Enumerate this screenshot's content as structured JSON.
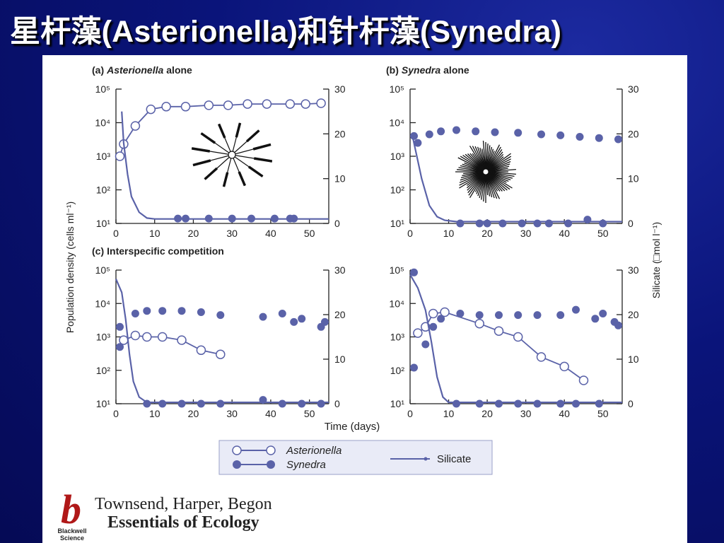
{
  "slide_title": "星杆藻(Asterionella)和针杆藻(Synedra)",
  "colors": {
    "series": "#5a62a8",
    "axis": "#222222",
    "background": "#0a147a"
  },
  "chart_data": [
    {
      "type": "scatter",
      "panel_label": "(a)",
      "title_species": "Asterionella",
      "title_rest": "alone",
      "x": {
        "ticks": [
          0,
          10,
          20,
          30,
          40,
          50
        ],
        "range": [
          0,
          55
        ]
      },
      "y_left": {
        "ticks": [
          "10⁵",
          "10⁴",
          "10³",
          "10²",
          "10¹"
        ],
        "log_range": [
          1,
          5
        ]
      },
      "y_right": {
        "ticks": [
          30,
          20,
          10,
          0
        ],
        "range": [
          0,
          30
        ]
      },
      "series": [
        {
          "name": "Asterionella",
          "marker": "open-circle",
          "points": [
            [
              1,
              1000
            ],
            [
              2,
              2300
            ],
            [
              5,
              8000
            ],
            [
              9,
              25000
            ],
            [
              13,
              30000
            ],
            [
              18,
              30000
            ],
            [
              24,
              33000
            ],
            [
              29,
              33000
            ],
            [
              34,
              36000
            ],
            [
              39,
              36000
            ],
            [
              45,
              36000
            ],
            [
              49,
              36000
            ],
            [
              53,
              38000
            ]
          ]
        },
        {
          "name": "Synedra",
          "marker": "filled-circle",
          "points": [
            [
              16,
              14
            ],
            [
              18,
              14
            ],
            [
              24,
              14
            ],
            [
              30,
              14
            ],
            [
              35,
              14
            ],
            [
              41,
              14
            ],
            [
              45,
              14
            ],
            [
              46,
              14
            ]
          ]
        },
        {
          "name": "Silicate",
          "marker": "line",
          "axis": "right",
          "curve": [
            [
              1.5,
              25
            ],
            [
              2,
              18
            ],
            [
              3,
              11
            ],
            [
              4,
              6
            ],
            [
              6,
              2.5
            ],
            [
              8,
              1.2
            ],
            [
              10,
              1.0
            ],
            [
              55,
              1.0
            ]
          ]
        }
      ]
    },
    {
      "type": "scatter",
      "panel_label": "(b)",
      "title_species": "Synedra",
      "title_rest": "alone",
      "x": {
        "ticks": [
          0,
          10,
          20,
          30,
          40,
          50
        ],
        "range": [
          0,
          55
        ]
      },
      "y_left": {
        "ticks": [
          "10⁵",
          "10⁴",
          "10³",
          "10²",
          "10¹"
        ],
        "log_range": [
          1,
          5
        ]
      },
      "y_right": {
        "ticks": [
          30,
          20,
          10,
          0
        ],
        "range": [
          0,
          30
        ]
      },
      "series": [
        {
          "name": "Synedra",
          "marker": "filled-circle",
          "points": [
            [
              1,
              4000
            ],
            [
              2,
              2500
            ],
            [
              5,
              4500
            ],
            [
              8,
              5500
            ],
            [
              12,
              6000
            ],
            [
              17,
              5500
            ],
            [
              22,
              5200
            ],
            [
              28,
              5000
            ],
            [
              34,
              4500
            ],
            [
              39,
              4200
            ],
            [
              44,
              3800
            ],
            [
              49,
              3500
            ],
            [
              54,
              3200
            ]
          ]
        },
        {
          "name": "Synedra",
          "marker": "filled-circle",
          "points": [
            [
              13,
              10
            ],
            [
              18,
              10
            ],
            [
              20,
              10
            ],
            [
              24,
              10
            ],
            [
              29,
              10
            ],
            [
              33,
              10
            ],
            [
              36,
              10
            ],
            [
              41,
              10
            ],
            [
              46,
              13
            ],
            [
              50,
              10
            ]
          ]
        },
        {
          "name": "Silicate",
          "marker": "line",
          "axis": "right",
          "curve": [
            [
              0.5,
              20
            ],
            [
              1.5,
              16
            ],
            [
              3,
              10
            ],
            [
              5,
              4
            ],
            [
              7,
              1.5
            ],
            [
              9,
              0.7
            ],
            [
              12,
              0.4
            ],
            [
              55,
              0.4
            ]
          ]
        }
      ]
    },
    {
      "type": "scatter",
      "panel_label": "(c)",
      "title_species": "",
      "title_rest": "Interspecific competition",
      "x": {
        "ticks": [
          0,
          10,
          20,
          30,
          40,
          50
        ],
        "range": [
          0,
          55
        ]
      },
      "y_left": {
        "ticks": [
          "10⁵",
          "10⁴",
          "10³",
          "10²",
          "10¹"
        ],
        "log_range": [
          1,
          5
        ]
      },
      "y_right": {
        "ticks": [
          30,
          20,
          10,
          0
        ],
        "range": [
          0,
          30
        ]
      },
      "series": [
        {
          "name": "Asterionella",
          "marker": "open-circle",
          "points": [
            [
              2,
              800
            ],
            [
              5,
              1100
            ],
            [
              8,
              1000
            ],
            [
              12,
              1000
            ],
            [
              17,
              800
            ],
            [
              22,
              400
            ],
            [
              27,
              300
            ]
          ]
        },
        {
          "name": "Synedra",
          "marker": "filled-circle",
          "points": [
            [
              1,
              500
            ],
            [
              1,
              2000
            ],
            [
              5,
              5000
            ],
            [
              8,
              6000
            ],
            [
              12,
              6000
            ],
            [
              17,
              6000
            ],
            [
              22,
              5500
            ],
            [
              27,
              4500
            ],
            [
              38,
              4000
            ],
            [
              43,
              5000
            ],
            [
              46,
              2800
            ],
            [
              48,
              3500
            ],
            [
              53,
              2000
            ],
            [
              54,
              2800
            ]
          ]
        },
        {
          "name": "Synedra",
          "marker": "filled-circle",
          "points": [
            [
              8,
              10
            ],
            [
              12,
              10
            ],
            [
              17,
              10
            ],
            [
              22,
              10
            ],
            [
              27,
              10
            ],
            [
              38,
              13
            ],
            [
              43,
              10
            ],
            [
              48,
              10
            ],
            [
              53,
              10
            ]
          ]
        },
        {
          "name": "Silicate",
          "marker": "line",
          "axis": "right",
          "curve": [
            [
              0,
              28
            ],
            [
              1.5,
              25
            ],
            [
              2.5,
              19
            ],
            [
              3.5,
              11
            ],
            [
              4.5,
              5
            ],
            [
              6,
              1.5
            ],
            [
              8,
              0.3
            ],
            [
              55,
              0.3
            ]
          ]
        }
      ]
    },
    {
      "type": "scatter",
      "panel_label": "",
      "title_species": "",
      "title_rest": "",
      "x": {
        "ticks": [
          0,
          10,
          20,
          30,
          40,
          50
        ],
        "range": [
          0,
          55
        ]
      },
      "y_left": {
        "ticks": [
          "10⁵",
          "10⁴",
          "10³",
          "10²",
          "10¹"
        ],
        "log_range": [
          1,
          5
        ]
      },
      "y_right": {
        "ticks": [
          30,
          20,
          10,
          0
        ],
        "range": [
          0,
          30
        ]
      },
      "series": [
        {
          "name": "Asterionella",
          "marker": "open-circle",
          "points": [
            [
              2,
              1300
            ],
            [
              4,
              2000
            ],
            [
              6,
              5000
            ],
            [
              9,
              5500
            ],
            [
              18,
              2500
            ],
            [
              23,
              1500
            ],
            [
              28,
              1000
            ],
            [
              34,
              250
            ],
            [
              40,
              130
            ],
            [
              45,
              50
            ]
          ]
        },
        {
          "name": "Synedra",
          "marker": "filled-circle",
          "points": [
            [
              1,
              120
            ],
            [
              1,
              85000
            ],
            [
              4,
              600
            ],
            [
              6,
              2000
            ],
            [
              8,
              3500
            ],
            [
              13,
              5000
            ],
            [
              18,
              4500
            ],
            [
              23,
              4500
            ],
            [
              28,
              4500
            ],
            [
              33,
              4500
            ],
            [
              39,
              4500
            ],
            [
              43,
              6500
            ],
            [
              48,
              3500
            ],
            [
              50,
              5000
            ],
            [
              53,
              2800
            ],
            [
              54,
              2200
            ]
          ]
        },
        {
          "name": "Synedra",
          "marker": "filled-circle",
          "points": [
            [
              12,
              10
            ],
            [
              18,
              10
            ],
            [
              23,
              10
            ],
            [
              28,
              10
            ],
            [
              33,
              10
            ],
            [
              39,
              10
            ],
            [
              43,
              10
            ],
            [
              49,
              10
            ]
          ]
        },
        {
          "name": "Silicate",
          "marker": "line",
          "axis": "right",
          "curve": [
            [
              0,
              29
            ],
            [
              2,
              26
            ],
            [
              4,
              21
            ],
            [
              5.5,
              14
            ],
            [
              7,
              6
            ],
            [
              8.5,
              1.5
            ],
            [
              10,
              0.3
            ],
            [
              55,
              0.3
            ]
          ]
        }
      ]
    }
  ],
  "shared_labels": {
    "ylabel_left": "Population density (cells ml⁻¹)",
    "ylabel_right": "Silicate (□mol l⁻¹)",
    "xlabel": "Time (days)"
  },
  "legend": [
    {
      "label": "Asterionella",
      "marker": "open-circle"
    },
    {
      "label": "Synedra",
      "marker": "filled-circle"
    },
    {
      "label": "Silicate",
      "marker": "line"
    }
  ],
  "publisher": {
    "logo_letter": "b",
    "logo_line1": "Blackwell",
    "logo_line2": "Science",
    "authors": "Townsend, Harper, Begon",
    "book_title": "Essentials of Ecology"
  }
}
